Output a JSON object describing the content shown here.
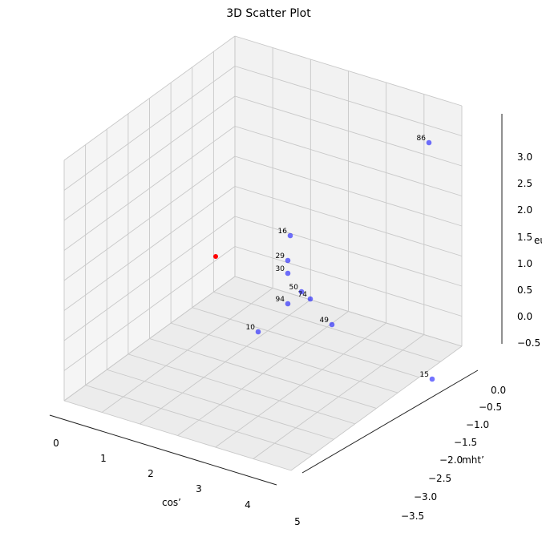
{
  "chart_data": {
    "type": "scatter",
    "title": "3D Scatter Plot",
    "xlabel": "cos’",
    "ylabel": "mht’",
    "zlabel": "eu",
    "x_ticks": [
      "0",
      "1",
      "2",
      "3",
      "4",
      "5"
    ],
    "y_ticks": [
      "0.0",
      "−0.5",
      "−1.0",
      "−1.5",
      "−2.0",
      "−2.5",
      "−3.0",
      "−3.5"
    ],
    "z_ticks": [
      "3.0",
      "2.5",
      "2.0",
      "1.5",
      "1.0",
      "0.5",
      "0.0",
      "−0.5"
    ],
    "xlim": [
      -0.3,
      5.3
    ],
    "ylim": [
      -3.6,
      0.35
    ],
    "zlim": [
      -0.6,
      3.2
    ],
    "points": [
      {
        "label": "86",
        "x": 5.0,
        "y": 0.0,
        "z": 3.0,
        "color": "#0000ff"
      },
      {
        "label": "16",
        "x": 2.1,
        "y": -1.1,
        "z": 1.0,
        "color": "#0000ff"
      },
      {
        "label": "29",
        "x": 2.4,
        "y": -1.4,
        "z": 0.65,
        "color": "#0000ff"
      },
      {
        "label": "30",
        "x": 2.5,
        "y": -1.5,
        "z": 0.5,
        "color": "#0000ff"
      },
      {
        "label": "50",
        "x": 2.9,
        "y": -1.6,
        "z": 0.2,
        "color": "#0000ff"
      },
      {
        "label": "74",
        "x": 3.0,
        "y": -1.5,
        "z": 0.0,
        "color": "#0000ff"
      },
      {
        "label": "94",
        "x": 2.7,
        "y": -1.8,
        "z": 0.0,
        "color": "#0000ff"
      },
      {
        "label": "49",
        "x": 3.8,
        "y": -1.4,
        "z": -0.5,
        "color": "#0000ff"
      },
      {
        "label": "10",
        "x": 3.0,
        "y": -2.2,
        "z": -0.6,
        "color": "#0000ff"
      },
      {
        "label": "15",
        "x": 5.3,
        "y": -0.1,
        "z": -0.6,
        "color": "#0000ff"
      },
      {
        "label": "",
        "x": 0.1,
        "y": -0.1,
        "z": 0.3,
        "color": "#ff0000"
      }
    ],
    "grid": true
  }
}
